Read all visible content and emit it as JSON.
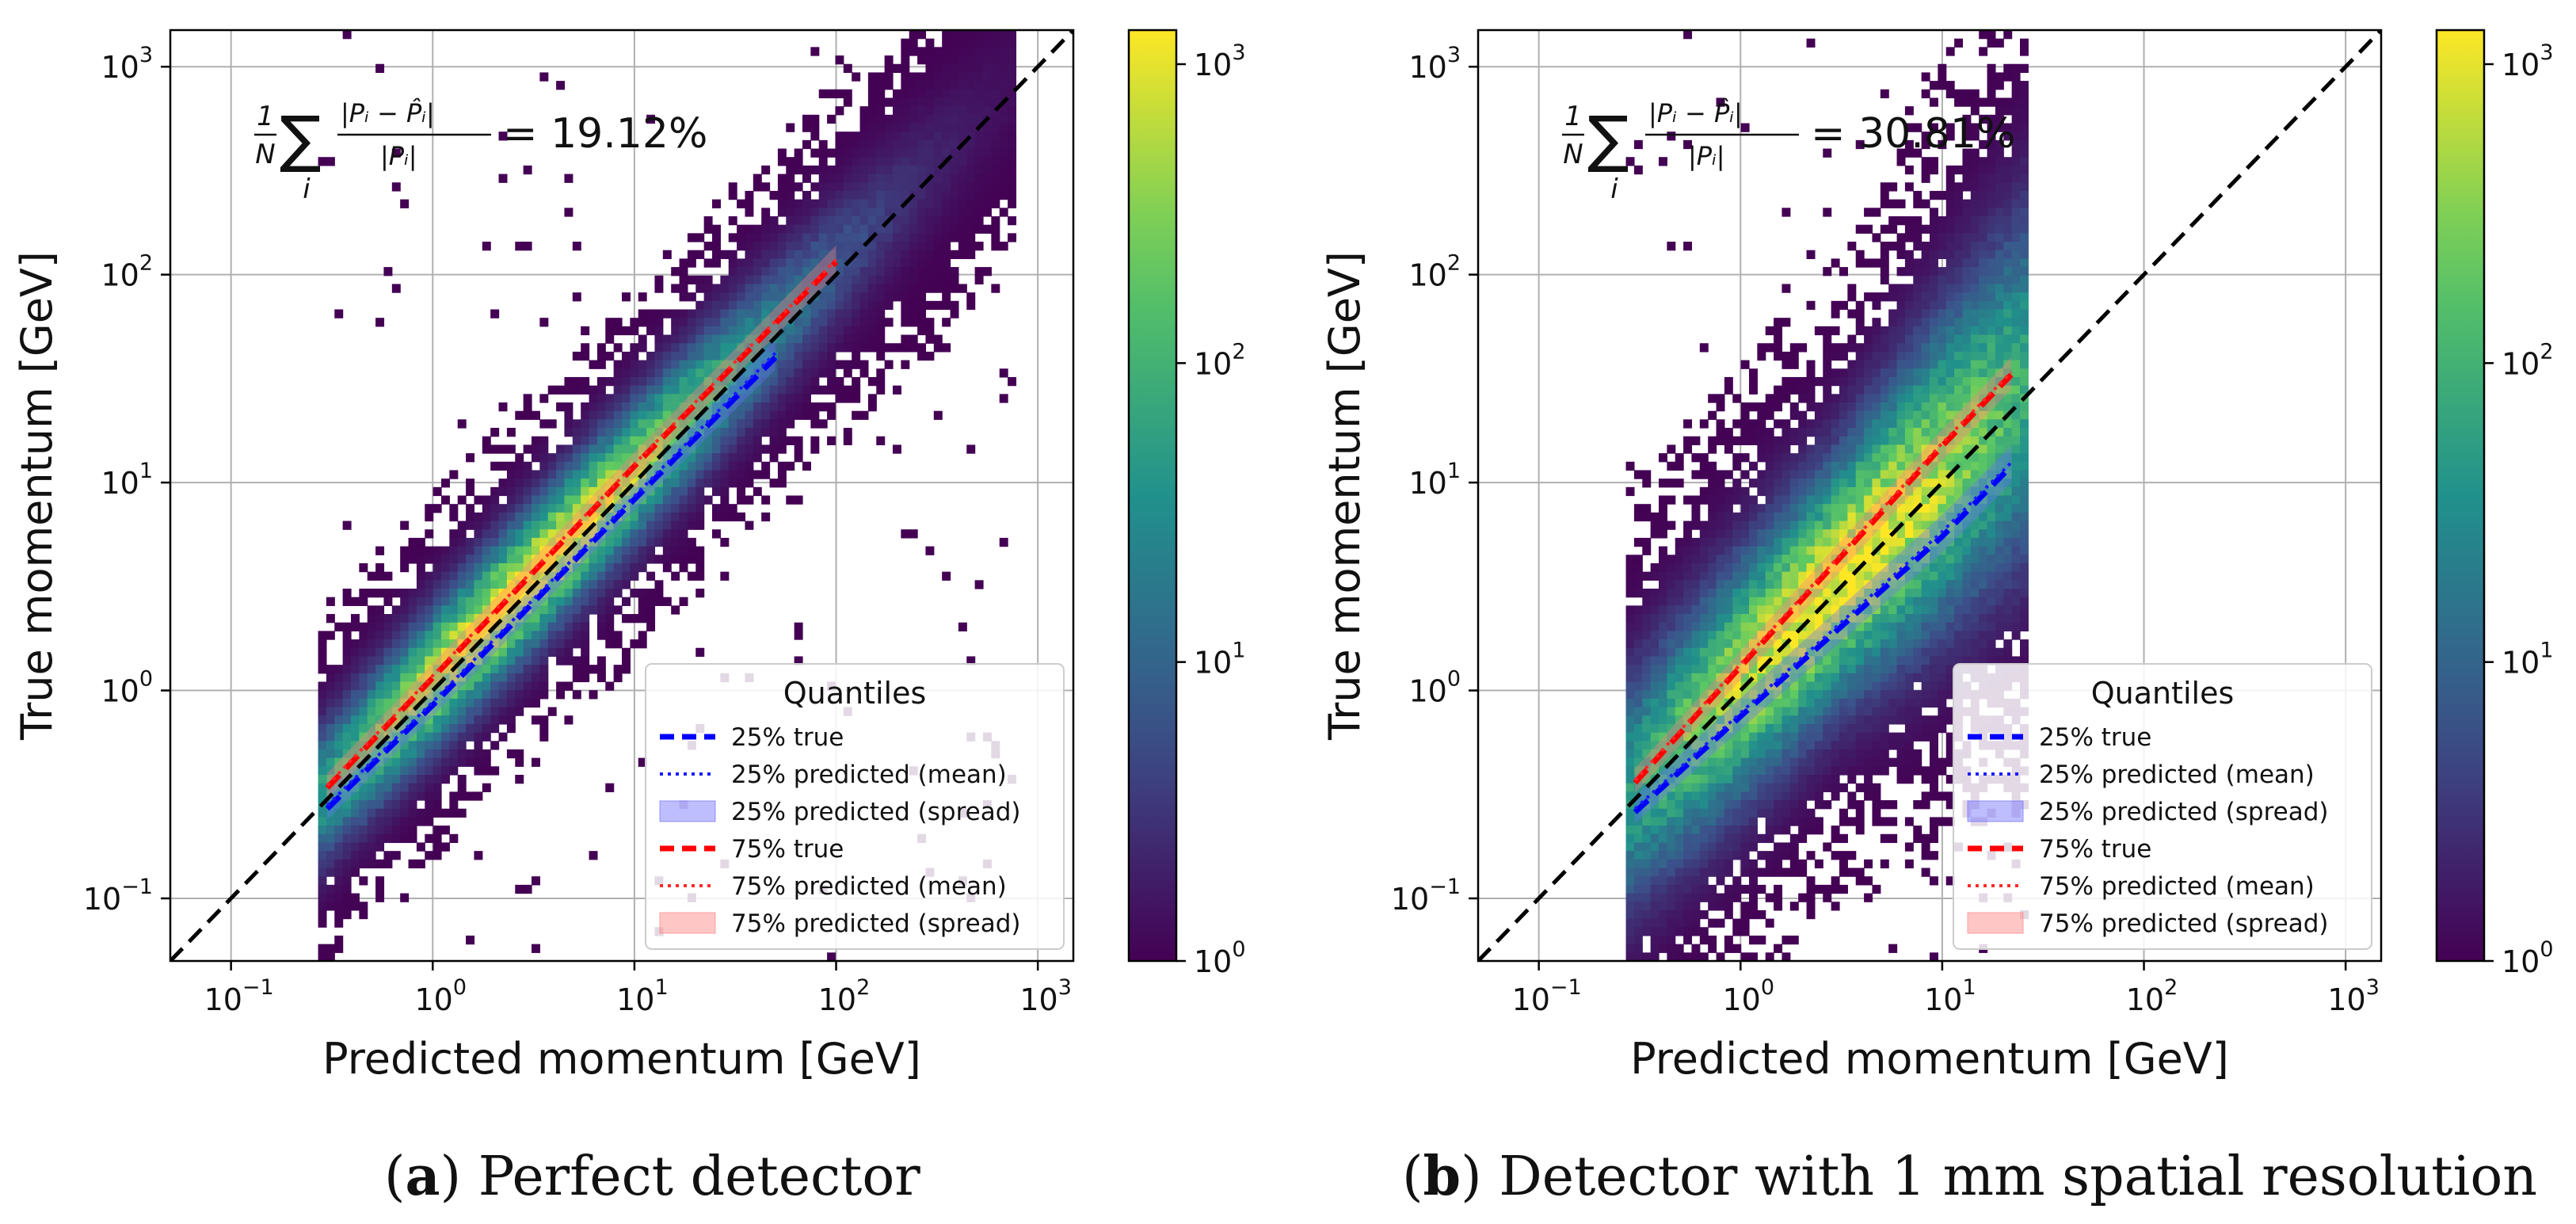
{
  "chart_data": [
    {
      "type": "heatmap",
      "panel_id": "a",
      "xlabel": "Predicted momentum [GeV]",
      "ylabel": "True momentum [GeV]",
      "x_scale": "log",
      "y_scale": "log",
      "xlim": [
        0.05,
        1500
      ],
      "ylim": [
        0.05,
        1500
      ],
      "x_ticks": [
        {
          "value": 0.1,
          "exp": "−1"
        },
        {
          "value": 1,
          "exp": "0"
        },
        {
          "value": 10,
          "exp": "1"
        },
        {
          "value": 100,
          "exp": "2"
        },
        {
          "value": 1000,
          "exp": "3"
        }
      ],
      "y_ticks": [
        {
          "value": 0.1,
          "exp": "−1"
        },
        {
          "value": 1,
          "exp": "0"
        },
        {
          "value": 10,
          "exp": "1"
        },
        {
          "value": 100,
          "exp": "2"
        },
        {
          "value": 1000,
          "exp": "3"
        }
      ],
      "grid": true,
      "colorbar": {
        "scale": "log",
        "range": [
          1,
          1300
        ],
        "ticks": [
          {
            "value": 1,
            "exp": "0"
          },
          {
            "value": 10,
            "exp": "1"
          },
          {
            "value": 100,
            "exp": "2"
          },
          {
            "value": 1000,
            "exp": "3"
          }
        ],
        "colormap": "viridis"
      },
      "formula": {
        "prefix": "1",
        "denominator": "N",
        "sum_index": "i",
        "rhs": "= 19.12%"
      },
      "metric_percent": 19.12,
      "diagonal": {
        "from": [
          0.05,
          0.05
        ],
        "to": [
          1500,
          1500
        ],
        "style": "dashed",
        "color": "#000000"
      },
      "density": {
        "x_min": 0.28,
        "x_max": 700,
        "spread_decades": 0.22,
        "peak_x": 3
      },
      "series": [
        {
          "name": "25% true",
          "style": "dashed",
          "color": "#0000ff",
          "x": [
            0.3,
            1,
            10,
            50
          ],
          "y": [
            0.27,
            0.85,
            8.3,
            40
          ]
        },
        {
          "name": "25% predicted (mean)",
          "style": "dotted",
          "color": "#1a1aff",
          "x": [
            0.3,
            1,
            10,
            50
          ],
          "y": [
            0.28,
            0.88,
            8.6,
            42
          ]
        },
        {
          "name": "25% predicted (spread)",
          "style": "band",
          "color": "#6f6fff",
          "x": [
            0.3,
            1,
            10,
            50
          ],
          "y_low": [
            0.24,
            0.75,
            7.4,
            35
          ],
          "y_high": [
            0.32,
            1.02,
            9.9,
            49
          ]
        },
        {
          "name": "75% true",
          "style": "dashed",
          "color": "#ff0000",
          "x": [
            0.3,
            1,
            10,
            100
          ],
          "y": [
            0.34,
            1.15,
            12,
            115
          ]
        },
        {
          "name": "75% predicted (mean)",
          "style": "dotted",
          "color": "#ff2a2a",
          "x": [
            0.3,
            1,
            10,
            100
          ],
          "y": [
            0.35,
            1.18,
            12.3,
            118
          ]
        },
        {
          "name": "75% predicted (spread)",
          "style": "band",
          "color": "#ff8080",
          "x": [
            0.3,
            1,
            10,
            100
          ],
          "y_low": [
            0.3,
            1.02,
            10.5,
            100
          ],
          "y_high": [
            0.4,
            1.35,
            14,
            138
          ]
        }
      ],
      "legend": {
        "title": "Quantiles",
        "position": "lower-right"
      },
      "caption": {
        "label": "a",
        "text": ") Perfect detector"
      }
    },
    {
      "type": "heatmap",
      "panel_id": "b",
      "xlabel": "Predicted momentum [GeV]",
      "ylabel": "True momentum [GeV]",
      "x_scale": "log",
      "y_scale": "log",
      "xlim": [
        0.05,
        1500
      ],
      "ylim": [
        0.05,
        1500
      ],
      "x_ticks": [
        {
          "value": 0.1,
          "exp": "−1"
        },
        {
          "value": 1,
          "exp": "0"
        },
        {
          "value": 10,
          "exp": "1"
        },
        {
          "value": 100,
          "exp": "2"
        },
        {
          "value": 1000,
          "exp": "3"
        }
      ],
      "y_ticks": [
        {
          "value": 0.1,
          "exp": "−1"
        },
        {
          "value": 1,
          "exp": "0"
        },
        {
          "value": 10,
          "exp": "1"
        },
        {
          "value": 100,
          "exp": "2"
        },
        {
          "value": 1000,
          "exp": "3"
        }
      ],
      "grid": true,
      "colorbar": {
        "scale": "log",
        "range": [
          1,
          1300
        ],
        "ticks": [
          {
            "value": 1,
            "exp": "0"
          },
          {
            "value": 10,
            "exp": "1"
          },
          {
            "value": 100,
            "exp": "2"
          },
          {
            "value": 1000,
            "exp": "3"
          }
        ],
        "colormap": "viridis"
      },
      "formula": {
        "prefix": "1",
        "denominator": "N",
        "sum_index": "i",
        "rhs": "= 30.81%"
      },
      "metric_percent": 30.81,
      "diagonal": {
        "from": [
          0.05,
          0.05
        ],
        "to": [
          1500,
          1500
        ],
        "style": "dashed",
        "color": "#000000"
      },
      "density": {
        "x_min": 0.28,
        "x_max": 25,
        "spread_decades": 0.38,
        "peak_x": 3
      },
      "series": [
        {
          "name": "25% true",
          "style": "dashed",
          "color": "#0000ff",
          "x": [
            0.3,
            1,
            10,
            22
          ],
          "y": [
            0.26,
            0.75,
            5.5,
            12
          ]
        },
        {
          "name": "25% predicted (mean)",
          "style": "dotted",
          "color": "#1a1aff",
          "x": [
            0.3,
            1,
            10,
            22
          ],
          "y": [
            0.27,
            0.78,
            5.8,
            12.5
          ]
        },
        {
          "name": "25% predicted (spread)",
          "style": "band",
          "color": "#6f6fff",
          "x": [
            0.3,
            1,
            10,
            22
          ],
          "y_low": [
            0.23,
            0.65,
            4.6,
            10
          ],
          "y_high": [
            0.31,
            0.92,
            7.0,
            15
          ]
        },
        {
          "name": "75% true",
          "style": "dashed",
          "color": "#ff0000",
          "x": [
            0.3,
            1,
            10,
            22
          ],
          "y": [
            0.36,
            1.3,
            15,
            33
          ]
        },
        {
          "name": "75% predicted (mean)",
          "style": "dotted",
          "color": "#ff2a2a",
          "x": [
            0.3,
            1,
            10,
            22
          ],
          "y": [
            0.37,
            1.34,
            15.5,
            34
          ]
        },
        {
          "name": "75% predicted (spread)",
          "style": "band",
          "color": "#ff8080",
          "x": [
            0.3,
            1,
            10,
            22
          ],
          "y_low": [
            0.32,
            1.12,
            12.8,
            28
          ],
          "y_high": [
            0.42,
            1.55,
            18,
            40
          ]
        }
      ],
      "legend": {
        "title": "Quantiles",
        "position": "lower-right"
      },
      "caption": {
        "label": "b",
        "text": ") Detector with 1 mm spatial resolution"
      }
    }
  ]
}
